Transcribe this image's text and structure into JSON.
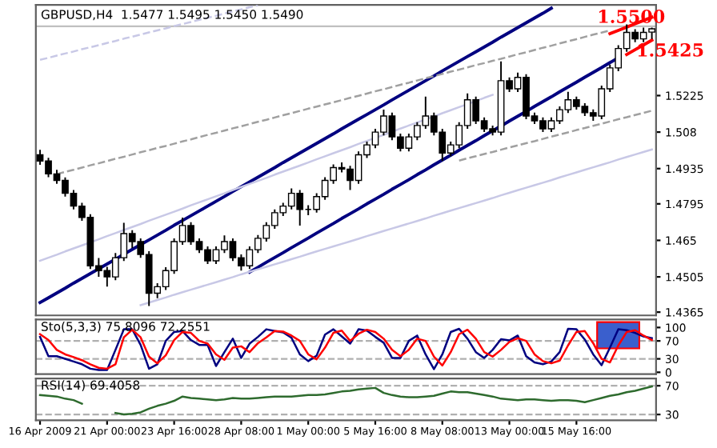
{
  "chart_data": [
    {
      "type": "candlestick",
      "title": "GBPUSD,H4  1.5477 1.5495 1.5450 1.5490",
      "categories": [
        null,
        null,
        null,
        null,
        null,
        null,
        null,
        null,
        null,
        null,
        null,
        null,
        null,
        null,
        null,
        null,
        null,
        null,
        null,
        null,
        null,
        null,
        null,
        null,
        null,
        null,
        null,
        null,
        null,
        null,
        null,
        null,
        null,
        null,
        null,
        null,
        null,
        null,
        null,
        null,
        null,
        null,
        null,
        null,
        null,
        null,
        null,
        null,
        null,
        null,
        null,
        null,
        null,
        null,
        null,
        null,
        null,
        null,
        null,
        null,
        null,
        null,
        null,
        null,
        null,
        null,
        null,
        null,
        null,
        null,
        null,
        null,
        null,
        null
      ],
      "ohlc": [
        [
          1.499,
          1.501,
          1.495,
          1.4965
        ],
        [
          1.4965,
          1.4978,
          1.4901,
          1.4914
        ],
        [
          1.4914,
          1.493,
          1.4875,
          1.4888
        ],
        [
          1.4888,
          1.49,
          1.4824,
          1.4837
        ],
        [
          1.4837,
          1.485,
          1.4773,
          1.4786
        ],
        [
          1.4786,
          1.4799,
          1.4728,
          1.4741
        ],
        [
          1.4741,
          1.4754,
          1.4536,
          1.4549
        ],
        [
          1.4549,
          1.458,
          1.4505,
          1.453
        ],
        [
          1.453,
          1.4545,
          1.4466,
          1.4505
        ],
        [
          1.4505,
          1.46,
          1.4492,
          1.4581
        ],
        [
          1.4581,
          1.472,
          1.4568,
          1.4677
        ],
        [
          1.4677,
          1.469,
          1.462,
          1.4645
        ],
        [
          1.4645,
          1.4658,
          1.4581,
          1.4594
        ],
        [
          1.4594,
          1.4607,
          1.4389,
          1.444
        ],
        [
          1.444,
          1.448,
          1.442,
          1.4466
        ],
        [
          1.4466,
          1.4543,
          1.4453,
          1.453
        ],
        [
          1.453,
          1.4658,
          1.4517,
          1.4645
        ],
        [
          1.4645,
          1.474,
          1.4632,
          1.4709
        ],
        [
          1.4709,
          1.4722,
          1.4632,
          1.4645
        ],
        [
          1.4645,
          1.4658,
          1.46,
          1.4613
        ],
        [
          1.4613,
          1.4626,
          1.4556,
          1.4569
        ],
        [
          1.4569,
          1.4626,
          1.4556,
          1.4613
        ],
        [
          1.4613,
          1.467,
          1.46,
          1.4645
        ],
        [
          1.4645,
          1.4658,
          1.4568,
          1.4581
        ],
        [
          1.4581,
          1.4594,
          1.453,
          1.4549
        ],
        [
          1.4549,
          1.4626,
          1.4536,
          1.4613
        ],
        [
          1.4613,
          1.4671,
          1.46,
          1.4658
        ],
        [
          1.4658,
          1.4722,
          1.4645,
          1.4709
        ],
        [
          1.4709,
          1.4773,
          1.4696,
          1.476
        ],
        [
          1.476,
          1.4799,
          1.4747,
          1.4786
        ],
        [
          1.4786,
          1.4856,
          1.4773,
          1.4837
        ],
        [
          1.4837,
          1.485,
          1.4709,
          1.4773
        ],
        [
          1.4773,
          1.479,
          1.475,
          1.4773
        ],
        [
          1.4773,
          1.4837,
          1.476,
          1.4824
        ],
        [
          1.4824,
          1.4901,
          1.4811,
          1.4888
        ],
        [
          1.4888,
          1.4952,
          1.4875,
          1.4939
        ],
        [
          1.4939,
          1.496,
          1.492,
          1.4933
        ],
        [
          1.4933,
          1.4946,
          1.485,
          1.4888
        ],
        [
          1.4888,
          1.5003,
          1.4875,
          1.499
        ],
        [
          1.499,
          1.5042,
          1.4977,
          1.5029
        ],
        [
          1.5029,
          1.5093,
          1.5016,
          1.508
        ],
        [
          1.508,
          1.5169,
          1.5067,
          1.5144
        ],
        [
          1.5144,
          1.5157,
          1.5048,
          1.5061
        ],
        [
          1.5061,
          1.5074,
          1.5003,
          1.5016
        ],
        [
          1.5016,
          1.5074,
          1.5003,
          1.5061
        ],
        [
          1.5061,
          1.5119,
          1.5048,
          1.5106
        ],
        [
          1.5106,
          1.5221,
          1.5093,
          1.5144
        ],
        [
          1.5144,
          1.5157,
          1.5067,
          1.508
        ],
        [
          1.508,
          1.5093,
          1.4965,
          1.4997
        ],
        [
          1.4997,
          1.5042,
          1.4984,
          1.5029
        ],
        [
          1.5029,
          1.5119,
          1.5016,
          1.5106
        ],
        [
          1.5106,
          1.5234,
          1.5093,
          1.5208
        ],
        [
          1.5208,
          1.5221,
          1.5112,
          1.5125
        ],
        [
          1.5125,
          1.5138,
          1.508,
          1.5093
        ],
        [
          1.5093,
          1.5106,
          1.5067,
          1.508
        ],
        [
          1.508,
          1.5361,
          1.5067,
          1.5284
        ],
        [
          1.5284,
          1.5297,
          1.5239,
          1.5252
        ],
        [
          1.5252,
          1.5316,
          1.5239,
          1.5297
        ],
        [
          1.5297,
          1.531,
          1.5131,
          1.5144
        ],
        [
          1.5144,
          1.5157,
          1.5112,
          1.5125
        ],
        [
          1.5125,
          1.5138,
          1.508,
          1.5093
        ],
        [
          1.5093,
          1.5138,
          1.508,
          1.5125
        ],
        [
          1.5125,
          1.5182,
          1.5112,
          1.5169
        ],
        [
          1.5169,
          1.524,
          1.5156,
          1.5208
        ],
        [
          1.5208,
          1.5221,
          1.5169,
          1.5182
        ],
        [
          1.5182,
          1.5195,
          1.5144,
          1.5157
        ],
        [
          1.5157,
          1.517,
          1.5125,
          1.5144
        ],
        [
          1.5144,
          1.5265,
          1.5131,
          1.5252
        ],
        [
          1.5252,
          1.5348,
          1.5239,
          1.5335
        ],
        [
          1.5335,
          1.5425,
          1.5322,
          1.5412
        ],
        [
          1.5412,
          1.5508,
          1.5399,
          1.5476
        ],
        [
          1.5476,
          1.5489,
          1.5437,
          1.545
        ],
        [
          1.545,
          1.5495,
          1.5437,
          1.5476
        ],
        [
          1.5477,
          1.5495,
          1.545,
          1.549
        ]
      ],
      "series": [
        {
          "type": "line",
          "color": "#000080",
          "line_style": "solid",
          "values": [
            1.4403,
            1.4422,
            1.4441,
            1.446,
            1.448,
            1.4499,
            1.4518,
            1.4537,
            1.4556,
            1.4575,
            1.4595,
            1.4614,
            1.4633,
            1.4652,
            1.4671,
            1.469,
            1.471,
            1.4729,
            1.4748,
            1.4767,
            1.4786,
            1.4805,
            1.4824,
            1.4844,
            1.4863,
            1.4882,
            1.4901,
            1.492,
            1.4939,
            1.4959,
            1.4978,
            1.4997,
            1.5016,
            1.5035,
            1.5054,
            1.5073,
            1.5093,
            1.5112,
            1.5131,
            1.515,
            1.5169,
            1.5188,
            1.5208,
            1.5227,
            1.5246,
            1.5265,
            1.5284,
            1.5303,
            1.5323,
            1.5342,
            1.5361,
            1.538,
            1.5399,
            1.5418,
            1.5437,
            1.5457,
            1.5476,
            1.5495,
            1.5514,
            1.5533,
            1.5552,
            1.5572,
            null,
            null,
            null,
            null,
            null,
            null,
            null,
            null,
            null,
            null,
            null,
            null
          ]
        },
        {
          "type": "line",
          "color": "#000080",
          "line_style": "solid",
          "values": [
            null,
            null,
            null,
            null,
            null,
            null,
            null,
            null,
            null,
            null,
            null,
            null,
            null,
            null,
            null,
            null,
            null,
            null,
            null,
            null,
            null,
            null,
            null,
            null,
            null,
            1.4524,
            1.4543,
            1.4563,
            1.4582,
            1.4601,
            1.4621,
            1.464,
            1.4659,
            1.4679,
            1.4698,
            1.4717,
            1.4737,
            1.4756,
            1.4775,
            1.4795,
            1.4814,
            1.4833,
            1.4853,
            1.4872,
            1.4891,
            1.4911,
            1.493,
            1.495,
            1.4969,
            1.4988,
            1.5008,
            1.5027,
            1.5046,
            1.5066,
            1.5085,
            1.5104,
            1.5124,
            1.5143,
            1.5162,
            1.5182,
            1.5201,
            1.522,
            1.524,
            1.5259,
            1.5278,
            1.5298,
            1.5317,
            1.5336,
            1.5356,
            1.5375,
            null,
            null,
            null,
            null
          ]
        },
        {
          "type": "line",
          "color": "#a0a0a0",
          "line_style": "dashed",
          "values": [
            null,
            null,
            1.4913,
            1.4922,
            1.493,
            1.4939,
            1.4948,
            1.4956,
            1.4965,
            1.4974,
            1.4982,
            1.4991,
            1.5,
            1.5008,
            1.5017,
            1.5025,
            1.5034,
            1.5043,
            1.5051,
            1.506,
            1.5069,
            1.5077,
            1.5086,
            1.5095,
            1.5103,
            1.5112,
            1.5121,
            1.5129,
            1.5138,
            1.5147,
            1.5155,
            1.5164,
            1.5173,
            1.5181,
            1.519,
            1.5198,
            1.5207,
            1.5216,
            1.5224,
            1.5233,
            1.5242,
            1.525,
            1.5259,
            1.5268,
            1.5276,
            1.5285,
            1.5294,
            1.5302,
            1.5311,
            1.532,
            1.5328,
            1.5337,
            1.5346,
            1.5354,
            1.5363,
            1.5371,
            1.538,
            1.5389,
            1.5397,
            1.5406,
            1.5415,
            1.5423,
            1.5432,
            1.5441,
            1.5449,
            1.5458,
            1.5467,
            1.5475,
            1.5484,
            null,
            null,
            null,
            null,
            null
          ]
        },
        {
          "type": "line",
          "color": "#a0a0a0",
          "line_style": "dashed",
          "values": [
            null,
            null,
            null,
            null,
            null,
            null,
            null,
            null,
            null,
            null,
            null,
            null,
            null,
            null,
            null,
            null,
            null,
            null,
            null,
            null,
            null,
            null,
            null,
            null,
            null,
            null,
            null,
            null,
            null,
            null,
            null,
            null,
            null,
            null,
            null,
            null,
            null,
            null,
            null,
            null,
            null,
            null,
            null,
            null,
            null,
            null,
            null,
            null,
            null,
            null,
            1.4967,
            1.4976,
            1.4984,
            1.4993,
            1.5001,
            1.501,
            1.5019,
            1.5027,
            1.5036,
            1.5044,
            1.5053,
            1.5062,
            1.507,
            1.5079,
            1.5088,
            1.5096,
            1.5105,
            1.5113,
            1.5122,
            1.5131,
            1.5139,
            1.5148,
            1.5156,
            1.5165
          ]
        },
        {
          "type": "line",
          "color": "#c8c8e6",
          "line_style": "dashed",
          "values": [
            1.5367,
            1.5375,
            1.5384,
            1.5392,
            1.54,
            1.5409,
            1.5417,
            1.5425,
            1.5434,
            1.5442,
            1.5451,
            1.5459,
            1.5467,
            1.5476,
            1.5484,
            1.5492,
            1.5501,
            1.5509,
            1.5517,
            1.5526,
            1.5534,
            1.5542,
            1.5551,
            1.5559,
            1.5567,
            1.5576,
            1.5584,
            null,
            null,
            null,
            null,
            null,
            null,
            null,
            null,
            null,
            null,
            null,
            null,
            null,
            null,
            null,
            null,
            null,
            null,
            null,
            null,
            null,
            null,
            null,
            null,
            null,
            null,
            null,
            null,
            null,
            null,
            null,
            null,
            null,
            null,
            null,
            null,
            null,
            null,
            null,
            null,
            null,
            null,
            null,
            null,
            null,
            null,
            null
          ]
        },
        {
          "type": "line",
          "color": "#c8c8e6",
          "line_style": "solid",
          "values": [
            null,
            null,
            null,
            null,
            null,
            null,
            null,
            null,
            null,
            null,
            null,
            null,
            1.4393,
            1.4403,
            1.4413,
            1.4423,
            1.4434,
            1.4444,
            1.4454,
            1.4464,
            1.4474,
            1.4484,
            1.4494,
            1.4504,
            1.4515,
            1.4525,
            1.4535,
            1.4545,
            1.4555,
            1.4565,
            1.4575,
            1.4585,
            1.4596,
            1.4606,
            1.4616,
            1.4626,
            1.4636,
            1.4646,
            1.4656,
            1.4667,
            1.4677,
            1.4687,
            1.4697,
            1.4707,
            1.4717,
            1.4727,
            1.4737,
            1.4748,
            1.4758,
            1.4768,
            1.4778,
            1.4788,
            1.4798,
            1.4808,
            1.4818,
            1.4829,
            1.4839,
            1.4849,
            1.4859,
            1.4869,
            1.4879,
            1.4889,
            1.49,
            1.491,
            1.492,
            1.493,
            1.494,
            1.495,
            1.496,
            1.4971,
            1.4981,
            1.4991,
            1.5001,
            1.5011
          ]
        },
        {
          "type": "line",
          "color": "#c8c8e6",
          "line_style": "solid",
          "values": [
            1.4569,
            1.4581,
            1.4593,
            1.4606,
            1.4618,
            1.463,
            1.4642,
            1.4654,
            1.4667,
            1.4679,
            1.4691,
            1.4703,
            1.4715,
            1.4728,
            1.474,
            1.4752,
            1.4764,
            1.4776,
            1.4789,
            1.4801,
            1.4813,
            1.4825,
            1.4837,
            1.485,
            1.4862,
            1.4874,
            1.4886,
            1.4898,
            1.4911,
            1.4923,
            1.4935,
            1.4947,
            1.4959,
            1.4972,
            1.4984,
            1.4996,
            1.5008,
            1.502,
            1.5033,
            1.5045,
            1.5057,
            1.5069,
            1.5081,
            1.5094,
            1.5106,
            1.5118,
            1.513,
            1.5142,
            1.5155,
            1.5167,
            1.5179,
            1.5191,
            1.5203,
            1.5216,
            1.5228,
            null,
            null,
            null,
            null,
            null,
            null,
            null,
            null,
            null,
            null,
            null,
            null,
            null,
            null,
            null,
            null,
            null,
            null,
            null
          ]
        },
        {
          "type": "line",
          "color": "#ff0000",
          "line_style": "solid",
          "values": [
            null,
            null,
            null,
            null,
            null,
            null,
            null,
            null,
            null,
            null,
            null,
            null,
            null,
            null,
            null,
            null,
            null,
            null,
            null,
            null,
            null,
            null,
            null,
            null,
            null,
            null,
            null,
            null,
            null,
            null,
            null,
            null,
            null,
            null,
            null,
            null,
            null,
            null,
            null,
            null,
            null,
            null,
            null,
            null,
            null,
            null,
            null,
            null,
            null,
            null,
            null,
            null,
            null,
            null,
            null,
            null,
            null,
            null,
            null,
            null,
            null,
            null,
            null,
            null,
            null,
            null,
            null,
            null,
            1.5471,
            1.5484,
            1.5497,
            1.551,
            1.5523,
            1.5536
          ]
        },
        {
          "type": "line",
          "color": "#ff0000",
          "line_style": "solid",
          "values": [
            null,
            null,
            null,
            null,
            null,
            null,
            null,
            null,
            null,
            null,
            null,
            null,
            null,
            null,
            null,
            null,
            null,
            null,
            null,
            null,
            null,
            null,
            null,
            null,
            null,
            null,
            null,
            null,
            null,
            null,
            null,
            null,
            null,
            null,
            null,
            null,
            null,
            null,
            null,
            null,
            null,
            null,
            null,
            null,
            null,
            null,
            null,
            null,
            null,
            null,
            null,
            null,
            null,
            null,
            null,
            null,
            null,
            null,
            null,
            null,
            null,
            null,
            null,
            null,
            null,
            null,
            null,
            null,
            null,
            null,
            1.5388,
            1.5407,
            1.5426,
            1.5445
          ]
        }
      ],
      "ref_lines": [
        {
          "axis": "y",
          "value": 1.55,
          "color": "#c0c0c0",
          "line_style": "solid"
        }
      ],
      "annotations": [
        "1.5500",
        "1.5425"
      ],
      "ylim": [
        1.4352,
        1.5585
      ],
      "yticks": [
        1.4365,
        1.4505,
        1.465,
        1.4795,
        1.4935,
        1.508,
        1.5225
      ],
      "tick_labels": "y"
    },
    {
      "type": "line",
      "title": "Sto(5,3,3) 75.8096 72.2551",
      "categories": [
        null,
        null,
        null,
        null,
        null,
        null,
        null,
        null,
        null,
        null,
        null,
        null,
        null,
        null,
        null,
        null,
        null,
        null,
        null,
        null,
        null,
        null,
        null,
        null,
        null,
        null,
        null,
        null,
        null,
        null,
        null,
        null,
        null,
        null,
        null,
        null,
        null,
        null,
        null,
        null,
        null,
        null,
        null,
        null,
        null,
        null,
        null,
        null,
        null,
        null,
        null,
        null,
        null,
        null,
        null,
        null,
        null,
        null,
        null,
        null,
        null,
        null,
        null,
        null,
        null,
        null,
        null,
        null,
        null,
        null,
        null,
        null,
        null,
        null
      ],
      "series": [
        {
          "color": "#000080",
          "values": [
            79,
            36,
            36,
            30,
            24,
            18,
            8,
            5,
            5,
            50,
            96,
            96,
            61,
            8,
            18,
            70,
            90,
            92,
            72,
            61,
            61,
            14,
            45,
            75,
            32,
            64,
            79,
            96,
            92,
            89,
            77,
            40,
            25,
            37,
            84,
            96,
            80,
            64,
            96,
            93,
            79,
            66,
            32,
            32,
            70,
            82,
            40,
            7,
            40,
            90,
            97,
            75,
            45,
            32,
            50,
            74,
            71,
            82,
            36,
            22,
            18,
            24,
            45,
            97,
            96,
            73,
            40,
            16,
            55,
            96,
            94,
            88,
            80,
            76
          ]
        },
        {
          "color": "#ff0000",
          "values": [
            85,
            72,
            50,
            40,
            34,
            27,
            18,
            10,
            8,
            18,
            78,
            95,
            78,
            35,
            20,
            38,
            72,
            90,
            88,
            70,
            64,
            40,
            28,
            55,
            58,
            45,
            65,
            78,
            92,
            91,
            82,
            70,
            40,
            29,
            55,
            88,
            93,
            70,
            86,
            95,
            90,
            75,
            50,
            36,
            50,
            75,
            70,
            35,
            15,
            45,
            85,
            95,
            75,
            45,
            35,
            50,
            68,
            76,
            70,
            40,
            25,
            20,
            26,
            60,
            90,
            92,
            65,
            30,
            22,
            60,
            90,
            94,
            82,
            72
          ]
        }
      ],
      "ref_lines": [
        {
          "axis": "y",
          "value": 70,
          "color": "#b0b0b0",
          "line_style": "dashed"
        },
        {
          "axis": "y",
          "value": 30,
          "color": "#b0b0b0",
          "line_style": "dashed"
        }
      ],
      "ylim": [
        -4,
        118
      ],
      "yticks": [
        0,
        30,
        70,
        100
      ],
      "tick_labels": "y"
    },
    {
      "type": "line",
      "title": "RSI(14) 69.4058",
      "categories": [
        "16 Apr 2009",
        null,
        null,
        null,
        null,
        null,
        null,
        null,
        "21 Apr 00:00",
        null,
        null,
        null,
        null,
        null,
        null,
        null,
        "23 Apr 16:00",
        null,
        null,
        null,
        null,
        null,
        null,
        null,
        "28 Apr 08:00",
        null,
        null,
        null,
        null,
        null,
        null,
        null,
        "1 May 00:00",
        null,
        null,
        null,
        null,
        null,
        null,
        null,
        "5 May 16:00",
        null,
        null,
        null,
        null,
        null,
        null,
        null,
        "8 May 08:00",
        null,
        null,
        null,
        null,
        null,
        null,
        null,
        "13 May 00:00",
        null,
        null,
        null,
        null,
        null,
        null,
        null,
        "15 May 16:00",
        null,
        null,
        null,
        null,
        null,
        null,
        null,
        null,
        null
      ],
      "series": [
        {
          "color": "#2e6b2e",
          "values": [
            57,
            56,
            55,
            52,
            50,
            45,
            null,
            null,
            null,
            32,
            30,
            31,
            33,
            38,
            42,
            45,
            49,
            55,
            53,
            52,
            51,
            50,
            51,
            53,
            52,
            52,
            53,
            54,
            55,
            55,
            55,
            56,
            57,
            57,
            58,
            60,
            62,
            63,
            65,
            66,
            67,
            60,
            57,
            55,
            54,
            54,
            55,
            56,
            59,
            62,
            61,
            61,
            59,
            57,
            55,
            52,
            51,
            50,
            51,
            51,
            50,
            49,
            50,
            50,
            49,
            47,
            50,
            53,
            56,
            58,
            61,
            63,
            66,
            69
          ]
        }
      ],
      "ref_lines": [
        {
          "axis": "y",
          "value": 70,
          "color": "#b0b0b0",
          "line_style": "dashed"
        },
        {
          "axis": "y",
          "value": 30,
          "color": "#b0b0b0",
          "line_style": "dashed"
        }
      ],
      "ylim": [
        22,
        80
      ],
      "yticks": [
        30,
        70
      ]
    }
  ]
}
